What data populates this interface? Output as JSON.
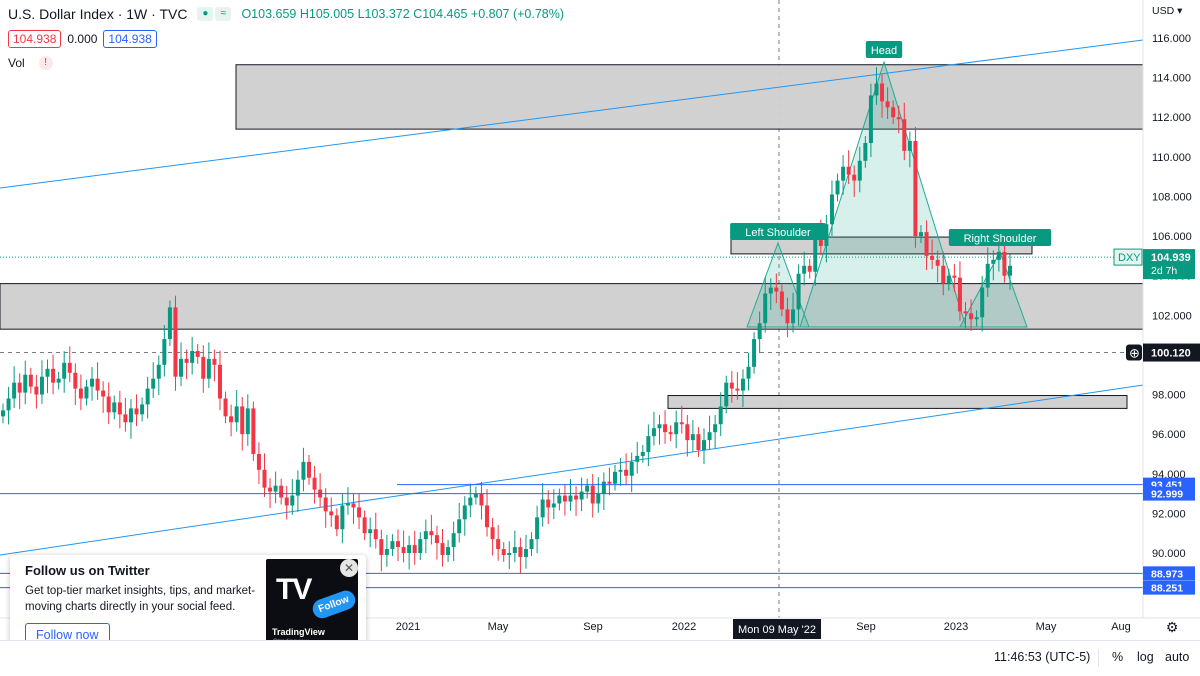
{
  "legend": {
    "title": "U.S. Dollar Index · 1W · TVC",
    "open": "O103.659",
    "high": "H105.005",
    "low": "L103.372",
    "close": "C104.465",
    "change": "+0.807 (+0.78%)",
    "bid": "104.938",
    "spread": "0.000",
    "ask": "104.938",
    "vol_label": "Vol",
    "vol_warning": "!"
  },
  "chart_data": {
    "type": "candlestick",
    "currency": "USD",
    "y_ticks": [
      "116.000",
      "114.000",
      "112.000",
      "110.000",
      "108.000",
      "106.000",
      "104.000",
      "102.000",
      "100.000",
      "98.000",
      "96.000",
      "94.000",
      "92.000",
      "90.000"
    ],
    "y_range": [
      88.0,
      117.0
    ],
    "x_ticks": [
      "2021",
      "May",
      "Sep",
      "2022",
      "May",
      "Sep",
      "2023",
      "May",
      "Aug"
    ],
    "crosshair_label": "Mon 09 May '22",
    "annotations": [
      "Head",
      "Left Shoulder",
      "Right Shoulder"
    ],
    "price_labels": [
      {
        "text": "DXY",
        "value": 104.939
      },
      {
        "text": "104.939",
        "value": 104.939
      },
      {
        "text": "2d 7h",
        "value": 104.939
      },
      {
        "text": "100.120",
        "value": 100.12
      },
      {
        "text": "93.451",
        "value": 93.451
      },
      {
        "text": "92.999",
        "value": 92.999
      },
      {
        "text": "88.973",
        "value": 88.973
      },
      {
        "text": "88.251",
        "value": 88.251
      }
    ],
    "weekly_closes": [
      97.2,
      97.8,
      98.6,
      98.1,
      99.0,
      98.4,
      98.0,
      98.9,
      99.3,
      98.6,
      98.8,
      99.6,
      99.1,
      98.3,
      97.8,
      98.4,
      98.8,
      98.2,
      97.9,
      97.1,
      97.6,
      97.0,
      96.6,
      97.3,
      97.0,
      97.5,
      98.3,
      98.8,
      99.5,
      100.8,
      102.4,
      98.9,
      99.8,
      99.6,
      100.2,
      99.9,
      98.8,
      99.8,
      99.5,
      97.8,
      96.9,
      96.6,
      97.4,
      96.0,
      97.3,
      95.0,
      94.2,
      93.3,
      93.1,
      93.4,
      92.8,
      92.4,
      92.9,
      93.7,
      94.6,
      93.8,
      93.2,
      92.8,
      92.1,
      91.9,
      91.2,
      92.4,
      92.5,
      92.3,
      91.8,
      91.0,
      91.2,
      90.7,
      89.9,
      90.2,
      90.6,
      90.3,
      90.0,
      90.4,
      90.0,
      90.7,
      91.1,
      90.9,
      90.5,
      89.9,
      90.3,
      91.0,
      91.7,
      92.4,
      92.8,
      93.0,
      92.4,
      91.3,
      90.7,
      90.2,
      89.9,
      90.0,
      90.3,
      89.8,
      90.2,
      90.7,
      91.8,
      92.7,
      92.3,
      92.5,
      92.9,
      92.6,
      92.9,
      92.7,
      93.1,
      93.4,
      92.5,
      93.0,
      93.6,
      93.5,
      94.1,
      94.2,
      93.9,
      94.6,
      94.9,
      95.1,
      95.9,
      96.3,
      96.5,
      96.1,
      96.0,
      96.6,
      96.5,
      95.7,
      96.0,
      95.2,
      95.7,
      96.1,
      96.5,
      97.4,
      98.6,
      98.3,
      98.2,
      98.8,
      99.4,
      100.8,
      101.6,
      103.1,
      103.4,
      103.2,
      102.3,
      101.6,
      102.3,
      104.1,
      104.5,
      104.2,
      106.0,
      105.5,
      106.6,
      108.1,
      108.8,
      109.5,
      109.1,
      108.8,
      109.8,
      110.7,
      113.1,
      113.7,
      112.8,
      112.5,
      112.0,
      111.9,
      110.3,
      110.8,
      106.0,
      106.2,
      105.0,
      104.8,
      104.5,
      103.6,
      104.0,
      103.9,
      102.2,
      102.1,
      101.8,
      101.9,
      103.4,
      104.6,
      104.8,
      105.2,
      104.0,
      104.5
    ]
  }
}
